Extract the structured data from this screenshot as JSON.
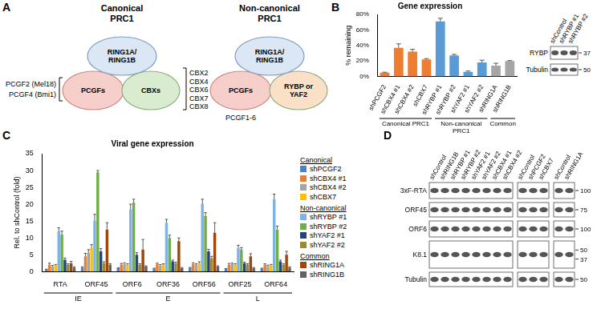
{
  "panel_a": {
    "letter": "A",
    "canonical": {
      "title": "Canonical PRC1",
      "nodes": [
        "RING1A/RING1B",
        "PCGFs",
        "CBXs"
      ],
      "pcgf_members": [
        "PCGF2 (Mel18)",
        "PCGF4 (Bmi1)"
      ],
      "cbx_members": [
        "CBX2",
        "CBX4",
        "CBX6",
        "CBX7",
        "CBX8"
      ]
    },
    "non_canonical": {
      "title": "Non-canonical PRC1",
      "nodes": [
        "RING1A/RING1B",
        "PCGFs",
        "RYBP or YAF2"
      ],
      "pcgf_members": [
        "PCGF1-6"
      ]
    }
  },
  "chart_data": [
    {
      "type": "bar",
      "letter": "B",
      "title": "Gene expression",
      "ylabel": "% remaining",
      "categories": [
        "shPCGF2",
        "shCBX4 #1",
        "shCBX4 #2",
        "shCBX7",
        "shRYBP #1",
        "shRYBP #2",
        "shYAF2 #1",
        "shYAF2 #2",
        "shRING1A",
        "shRING1B"
      ],
      "values": [
        5,
        37,
        32,
        22,
        71,
        27,
        6,
        18,
        14,
        20
      ],
      "errors": [
        0.5,
        5,
        3,
        1,
        4,
        1.5,
        1,
        3,
        3,
        0.5
      ],
      "colors": [
        "#ED7D31",
        "#ED7D31",
        "#ED7D31",
        "#ED7D31",
        "#5B9BD5",
        "#5B9BD5",
        "#5B9BD5",
        "#5B9BD5",
        "#A5A5A5",
        "#A5A5A5"
      ],
      "groups": [
        {
          "label": "Canonical PRC1",
          "categories": [
            "shPCGF2",
            "shCBX4 #1",
            "shCBX4 #2",
            "shCBX7"
          ]
        },
        {
          "label": "Non-canonical PRC1",
          "categories": [
            "shRYBP #1",
            "shRYBP #2",
            "shYAF2 #1",
            "shYAF2 #2"
          ]
        },
        {
          "label": "Common",
          "categories": [
            "shRING1A",
            "shRING1B"
          ]
        }
      ],
      "ylim": [
        0,
        80
      ],
      "yticks": [
        {
          "value": 0,
          "label": "0%"
        },
        {
          "value": 20,
          "label": "20%"
        },
        {
          "value": 40,
          "label": "40%"
        },
        {
          "value": 60,
          "label": "60%"
        },
        {
          "value": 80,
          "label": "80%"
        }
      ],
      "grid": false
    },
    {
      "type": "bar",
      "letter": "C",
      "title": "Viral gene expression",
      "ylabel": "Rel. to shControl (fold)",
      "categories": [
        "RTA",
        "ORF45",
        "ORF6",
        "ORF36",
        "ORF56",
        "ORF25",
        "ORF64"
      ],
      "groups": [
        {
          "label": "IE",
          "categories": [
            "RTA",
            "ORF45"
          ]
        },
        {
          "label": "E",
          "categories": [
            "ORF6",
            "ORF36",
            "ORF56"
          ]
        },
        {
          "label": "L",
          "categories": [
            "ORF25",
            "ORF64"
          ]
        }
      ],
      "series": [
        {
          "name": "shPCGF2",
          "color": "#4F81BD",
          "values": [
            0.6,
            1.2,
            1.0,
            0.9,
            1.1,
            0.8,
            0.9
          ],
          "errors": [
            0.1,
            0.2,
            0.1,
            0.1,
            0.1,
            0.1,
            0.1
          ]
        },
        {
          "name": "shCBX4 #1",
          "color": "#ED7D31",
          "values": [
            2.0,
            4.5,
            2.0,
            2.2,
            2.2,
            2.0,
            2.0
          ],
          "errors": [
            0.5,
            0.9,
            0.4,
            0.3,
            0.4,
            0.4,
            0.3
          ]
        },
        {
          "name": "shCBX4 #2",
          "color": "#A5A5A5",
          "values": [
            1.5,
            5.5,
            2.2,
            1.8,
            2.0,
            2.2,
            1.6
          ],
          "errors": [
            0.3,
            1.0,
            0.4,
            0.3,
            0.3,
            0.3,
            0.3
          ]
        },
        {
          "name": "shCBX7",
          "color": "#FFC000",
          "values": [
            1.8,
            7.0,
            2.0,
            2.0,
            2.5,
            2.0,
            1.8
          ],
          "errors": [
            0.3,
            1.0,
            0.3,
            0.3,
            0.4,
            0.3,
            0.3
          ]
        },
        {
          "name": "shRYBP #1",
          "color": "#7FB2E5",
          "values": [
            12.0,
            15.0,
            18.5,
            14.5,
            20.0,
            7.0,
            21.5
          ],
          "errors": [
            1.0,
            2.0,
            1.5,
            1.0,
            1.5,
            0.8,
            1.5
          ]
        },
        {
          "name": "shRYBP #2",
          "color": "#70AD47",
          "values": [
            11.0,
            29.5,
            20.5,
            10.0,
            16.5,
            6.5,
            12.5
          ],
          "errors": [
            1.0,
            0.5,
            1.0,
            0.8,
            1.0,
            0.6,
            1.0
          ]
        },
        {
          "name": "shYAF2 #1",
          "color": "#264478",
          "values": [
            3.5,
            6.0,
            5.0,
            3.0,
            6.0,
            2.5,
            3.0
          ],
          "errors": [
            0.5,
            0.8,
            0.6,
            0.4,
            0.6,
            0.3,
            0.4
          ]
        },
        {
          "name": "shYAF2 #2",
          "color": "#9E8A2E",
          "values": [
            2.0,
            2.5,
            2.0,
            2.5,
            4.0,
            2.0,
            2.0
          ],
          "errors": [
            0.3,
            0.4,
            0.3,
            0.3,
            0.5,
            0.3,
            0.3
          ]
        },
        {
          "name": "shRING1A",
          "color": "#9E480E",
          "values": [
            2.5,
            12.5,
            6.5,
            9.0,
            11.5,
            4.5,
            5.0
          ],
          "errors": [
            0.5,
            2.0,
            3.0,
            1.0,
            3.0,
            0.8,
            1.0
          ]
        },
        {
          "name": "shRING1B",
          "color": "#636363",
          "values": [
            1.2,
            2.0,
            1.5,
            1.0,
            1.5,
            1.0,
            1.2
          ],
          "errors": [
            0.2,
            0.3,
            0.2,
            0.2,
            0.2,
            0.2,
            0.2
          ]
        }
      ],
      "ylim": [
        0,
        35
      ],
      "yticks": [
        0,
        5,
        10,
        15,
        20,
        25,
        30,
        35
      ],
      "grid": false,
      "legend": "right",
      "legend_groups": [
        {
          "title": "Canonical",
          "members": [
            "shPCGF2",
            "shCBX4 #1",
            "shCBX4 #2",
            "shCBX7"
          ]
        },
        {
          "title": "Non-canonical",
          "members": [
            "shRYBP #1",
            "shRYBP #2",
            "shYAF2 #1",
            "shYAF2 #2"
          ]
        },
        {
          "title": "Common",
          "members": [
            "shRING1A",
            "shRING1B"
          ]
        }
      ]
    }
  ],
  "blot_b": {
    "lanes": [
      [
        "shControl",
        "shRYBP #1",
        "shRYBP #2"
      ]
    ],
    "rows": [
      {
        "label": "RYBP",
        "markers": [
          37
        ]
      },
      {
        "label": "Tubulin",
        "markers": [
          50
        ]
      }
    ]
  },
  "panel_d": {
    "letter": "D",
    "lanes": [
      [
        "shControl",
        "shRING1B",
        "shRYBP #1",
        "shRYBP #2",
        "shYAF2 #1",
        "shYAF2 #2",
        "shCBX4 #1",
        "shCBX4 #2"
      ],
      [
        "shControl",
        "shPCGF2",
        "shCBX7"
      ],
      [
        "shControl",
        "shRING1A"
      ]
    ],
    "rows": [
      {
        "label": "3xF-RTA",
        "markers": [
          100
        ]
      },
      {
        "label": "ORF45",
        "markers": [
          75
        ]
      },
      {
        "label": "ORF6",
        "markers": [
          100
        ]
      },
      {
        "label": "K8.1",
        "markers": [
          50,
          37
        ]
      },
      {
        "label": "Tubulin",
        "markers": [
          50
        ]
      }
    ]
  }
}
